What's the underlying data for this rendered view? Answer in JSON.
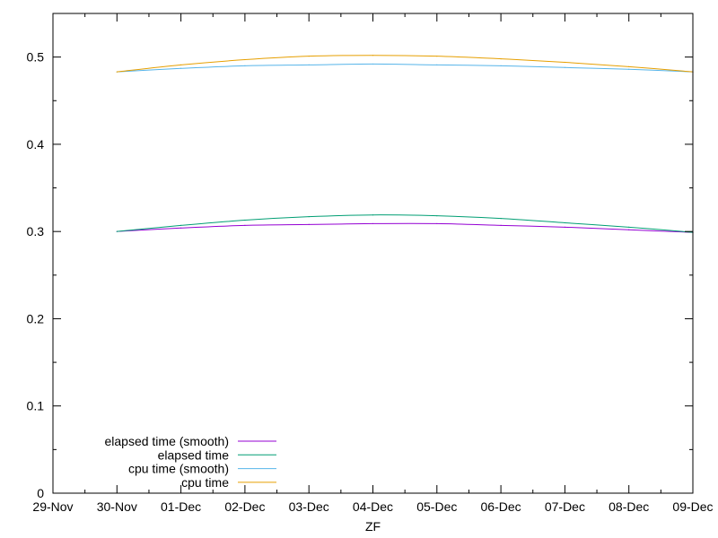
{
  "chart_data": {
    "type": "line",
    "title": "",
    "xlabel": "ZF",
    "ylabel": "",
    "xlim": [
      "2022-11-29",
      "2022-12-09"
    ],
    "ylim": [
      0,
      0.55
    ],
    "x_ticks": [
      "29-Nov",
      "30-Nov",
      "01-Dec",
      "02-Dec",
      "03-Dec",
      "04-Dec",
      "05-Dec",
      "06-Dec",
      "07-Dec",
      "08-Dec",
      "09-Dec"
    ],
    "y_ticks": [
      "0",
      "0.1",
      "0.2",
      "0.3",
      "0.4",
      "0.5"
    ],
    "legend_position": "bottom-left",
    "grid": false,
    "series": [
      {
        "name": "elapsed time (smooth)",
        "color": "#9400d3",
        "x": [
          "2022-11-30",
          "2022-12-01",
          "2022-12-02",
          "2022-12-03",
          "2022-12-04",
          "2022-12-05",
          "2022-12-06",
          "2022-12-07",
          "2022-12-08",
          "2022-12-09"
        ],
        "y": [
          0.3,
          0.304,
          0.307,
          0.308,
          0.309,
          0.309,
          0.307,
          0.305,
          0.302,
          0.299
        ]
      },
      {
        "name": "elapsed time",
        "color": "#009e73",
        "x": [
          "2022-11-30",
          "2022-12-01",
          "2022-12-02",
          "2022-12-03",
          "2022-12-04",
          "2022-12-05",
          "2022-12-06",
          "2022-12-07",
          "2022-12-08",
          "2022-12-09"
        ],
        "y": [
          0.3,
          0.307,
          0.313,
          0.317,
          0.319,
          0.318,
          0.315,
          0.31,
          0.305,
          0.299
        ]
      },
      {
        "name": "cpu time (smooth)",
        "color": "#56b4e9",
        "x": [
          "2022-11-30",
          "2022-12-01",
          "2022-12-02",
          "2022-12-03",
          "2022-12-04",
          "2022-12-05",
          "2022-12-06",
          "2022-12-07",
          "2022-12-08",
          "2022-12-09"
        ],
        "y": [
          0.483,
          0.487,
          0.49,
          0.491,
          0.492,
          0.491,
          0.49,
          0.488,
          0.486,
          0.483
        ]
      },
      {
        "name": "cpu time",
        "color": "#e69f00",
        "x": [
          "2022-11-30",
          "2022-12-01",
          "2022-12-02",
          "2022-12-03",
          "2022-12-04",
          "2022-12-05",
          "2022-12-06",
          "2022-12-07",
          "2022-12-08",
          "2022-12-09"
        ],
        "y": [
          0.483,
          0.491,
          0.497,
          0.501,
          0.502,
          0.501,
          0.498,
          0.494,
          0.489,
          0.483
        ]
      }
    ]
  }
}
